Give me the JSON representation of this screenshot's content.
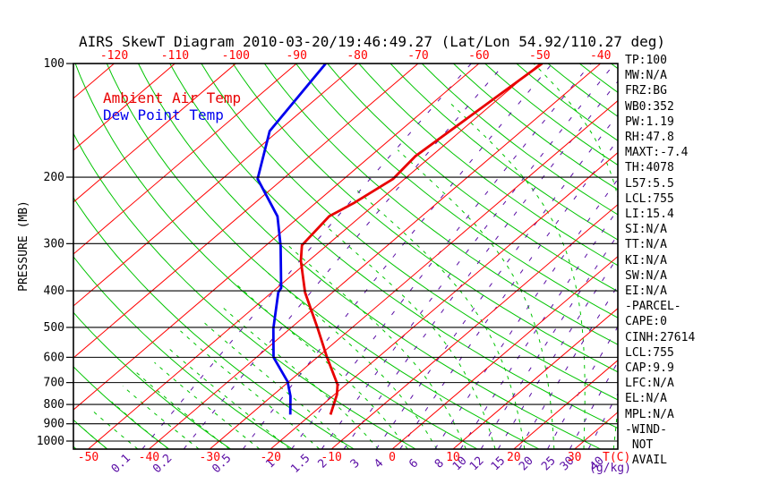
{
  "title": "AIRS SkewT Diagram 2010-03-20/19:46:49.27 (Lat/Lon 54.92/110.27 deg)",
  "legend": {
    "temp_label": "Ambient Air Temp",
    "dewpoint_label": "Dew Point Temp"
  },
  "axes": {
    "pressure_label": "PRESSURE (MB)",
    "temp_label": "T(C)",
    "mixing_unit_label": "(g/kg)"
  },
  "colors": {
    "isotherm_grid": "#ff0000",
    "adiabat_grid": "#00c400",
    "mixing_ratio_grid": "#5a0da5",
    "isobar": "#000000",
    "temp_curve": "#e80000",
    "dewpoint_curve": "#0000ee",
    "tick_label_red": "#ff0000",
    "text_black": "#000000"
  },
  "side_panel": {
    "lines": [
      "TP:100",
      "MW:N/A",
      "FRZ:BG",
      "WB0:352",
      "PW:1.19",
      "RH:47.8",
      "MAXT:-7.4",
      "TH:4078",
      "L57:5.5",
      "LCL:755",
      "LI:15.4",
      "SI:N/A",
      "TT:N/A",
      "KI:N/A",
      "SW:N/A",
      "EI:N/A",
      "-PARCEL-",
      "CAPE:0",
      "CINH:27614",
      "LCL:755",
      "CAP:9.9",
      "LFC:N/A",
      "EL:N/A",
      "MPL:N/A",
      "-WIND-",
      " NOT",
      " AVAIL"
    ]
  },
  "chart_data": {
    "type": "line",
    "variant": "skew-t-log-p",
    "title": "AIRS SkewT Diagram 2010-03-20/19:46:49.27 (Lat/Lon 54.92/110.27 deg)",
    "xlabel": "T(C)",
    "ylabel": "PRESSURE (MB)",
    "y_axis": {
      "scale": "log",
      "range_mb": [
        100,
        1050
      ],
      "ticks_mb": [
        100,
        200,
        300,
        400,
        500,
        600,
        700,
        800,
        900,
        1000
      ]
    },
    "x_axis": {
      "skewed": true,
      "bottom_ticks_c": [
        -50,
        -40,
        -30,
        -20,
        -10,
        0,
        10,
        20,
        30
      ],
      "top_ticks_c": [
        -120,
        -110,
        -100,
        -90,
        -80,
        -70,
        -60,
        -50,
        -40
      ]
    },
    "grid": {
      "isotherms_c": {
        "min": -160,
        "max": 40,
        "step": 10
      },
      "dry_adiabats_theta_c": {
        "min": -60,
        "max": 200,
        "step": 10
      },
      "moist_adiabats_thetaw_c": {
        "min": -55,
        "max": 40,
        "step": 5,
        "clip_below_c": -58
      },
      "mixing_ratio_g_kg": [
        0.1,
        0.2,
        0.5,
        1,
        1.5,
        2,
        3,
        4,
        6,
        8,
        10,
        12,
        15,
        20,
        25,
        30,
        40
      ]
    },
    "series": [
      {
        "name": "Ambient Air Temp",
        "color": "#e80000",
        "points_p_t": [
          [
            100,
            -49.6
          ],
          [
            176,
            -52.6
          ],
          [
            202,
            -51.9
          ],
          [
            234,
            -53.7
          ],
          [
            254,
            -55.2
          ],
          [
            280,
            -54.6
          ],
          [
            303,
            -54.1
          ],
          [
            333,
            -51.3
          ],
          [
            404,
            -44.5
          ],
          [
            503,
            -35.5
          ],
          [
            600,
            -28.4
          ],
          [
            709,
            -21.4
          ],
          [
            753,
            -19.6
          ],
          [
            851,
            -16.8
          ]
        ]
      },
      {
        "name": "Dew Point Temp",
        "color": "#0000ee",
        "points_p_t": [
          [
            100,
            -85.2
          ],
          [
            151,
            -81.4
          ],
          [
            202,
            -74.2
          ],
          [
            254,
            -63.7
          ],
          [
            304,
            -57.5
          ],
          [
            393,
            -49.3
          ],
          [
            404,
            -48.9
          ],
          [
            503,
            -42.8
          ],
          [
            600,
            -37.2
          ],
          [
            696,
            -30.2
          ],
          [
            761,
            -26.9
          ],
          [
            851,
            -23.4
          ]
        ]
      }
    ],
    "wind": "NOT AVAIL"
  }
}
